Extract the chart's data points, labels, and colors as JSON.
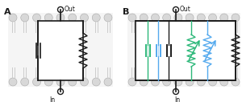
{
  "bg_color": "#ffffff",
  "mem_fill": "#f5f5f5",
  "mem_head_color": "#d8d8d8",
  "mem_tail_color": "#cccccc",
  "mem_edge_color": "#aaaaaa",
  "cc": "#1a1a1a",
  "gc": "#2db87a",
  "bc": "#55aaee",
  "label_A": "A",
  "label_B": "B",
  "label_Out": "Out",
  "label_In": "In"
}
